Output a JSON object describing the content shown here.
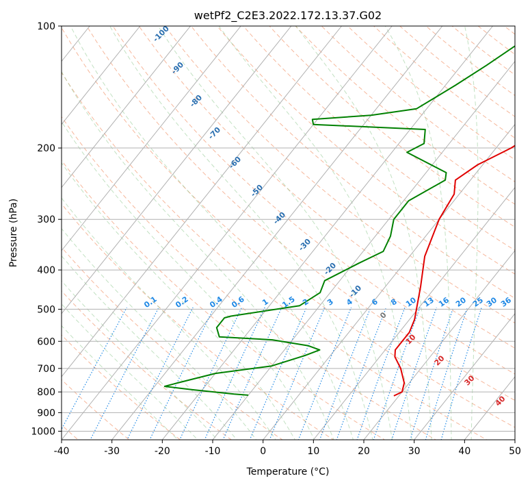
{
  "chart_data": {
    "type": "line",
    "title": "wetPf2_C2E3.2022.172.13.37.G02",
    "xlabel": "Temperature (°C)",
    "ylabel": "Pressure (hPa)",
    "xlim": [
      -40,
      50
    ],
    "ylim": [
      1050,
      100
    ],
    "y_scale": "log",
    "grid": true,
    "x_ticks": [
      -40,
      -30,
      -20,
      -10,
      0,
      10,
      20,
      30,
      40,
      50
    ],
    "y_ticks": [
      1000,
      900,
      800,
      700,
      600,
      500,
      400,
      300,
      200,
      100
    ],
    "series": [
      {
        "color": "#e00000",
        "points": [
          [
            19,
            818
          ],
          [
            20,
            800
          ],
          [
            19,
            760
          ],
          [
            16,
            700
          ],
          [
            13,
            655
          ],
          [
            12,
            630
          ],
          [
            12,
            570
          ],
          [
            11,
            530
          ],
          [
            7,
            440
          ],
          [
            3,
            370
          ],
          [
            0,
            300
          ],
          [
            -1,
            260
          ],
          [
            -3,
            240
          ],
          [
            -1,
            220
          ],
          [
            3,
            200
          ],
          [
            6,
            180
          ],
          [
            8,
            165
          ],
          [
            7,
            140
          ],
          [
            8,
            125
          ],
          [
            9,
            115
          ],
          [
            11,
            105
          ],
          [
            12,
            100
          ]
        ]
      },
      {
        "color": "#008000",
        "points": [
          [
            -10,
            815
          ],
          [
            -13,
            810
          ],
          [
            -22,
            790
          ],
          [
            -28,
            775
          ],
          [
            -26,
            760
          ],
          [
            -20,
            720
          ],
          [
            -10,
            690
          ],
          [
            -5,
            650
          ],
          [
            -3,
            630
          ],
          [
            -6,
            615
          ],
          [
            -14,
            595
          ],
          [
            -25,
            585
          ],
          [
            -27,
            555
          ],
          [
            -27,
            525
          ],
          [
            -26,
            520
          ],
          [
            -14,
            490
          ],
          [
            -12,
            455
          ],
          [
            -13,
            425
          ],
          [
            -9,
            385
          ],
          [
            -6,
            360
          ],
          [
            -7,
            330
          ],
          [
            -9,
            300
          ],
          [
            -9,
            270
          ],
          [
            -5,
            240
          ],
          [
            -6,
            230
          ],
          [
            -17,
            205
          ],
          [
            -15,
            195
          ],
          [
            -17,
            180
          ],
          [
            -40,
            175
          ],
          [
            -41,
            170
          ],
          [
            -30,
            166
          ],
          [
            -22,
            160
          ],
          [
            -18,
            140
          ],
          [
            -15,
            125
          ],
          [
            -12,
            110
          ],
          [
            -10,
            100
          ]
        ]
      }
    ],
    "dry_adiabat_labels": [
      "-100",
      "-90",
      "-80",
      "-70",
      "-60",
      "-50",
      "-40",
      "-30",
      "-20",
      "-10",
      "0",
      "10",
      "20",
      "30",
      "40"
    ],
    "mixing_ratio_labels": [
      "0.1",
      "0.2",
      "0.4",
      "0.6",
      "1",
      "1.5",
      "2",
      "3",
      "4",
      "6",
      "8",
      "10",
      "13",
      "16",
      "20",
      "25",
      "30",
      "36"
    ],
    "mixing_ratio_values": [
      0.1,
      0.2,
      0.4,
      0.6,
      1,
      1.5,
      2,
      3,
      4,
      6,
      8,
      10,
      13,
      16,
      20,
      25,
      30,
      36
    ]
  }
}
